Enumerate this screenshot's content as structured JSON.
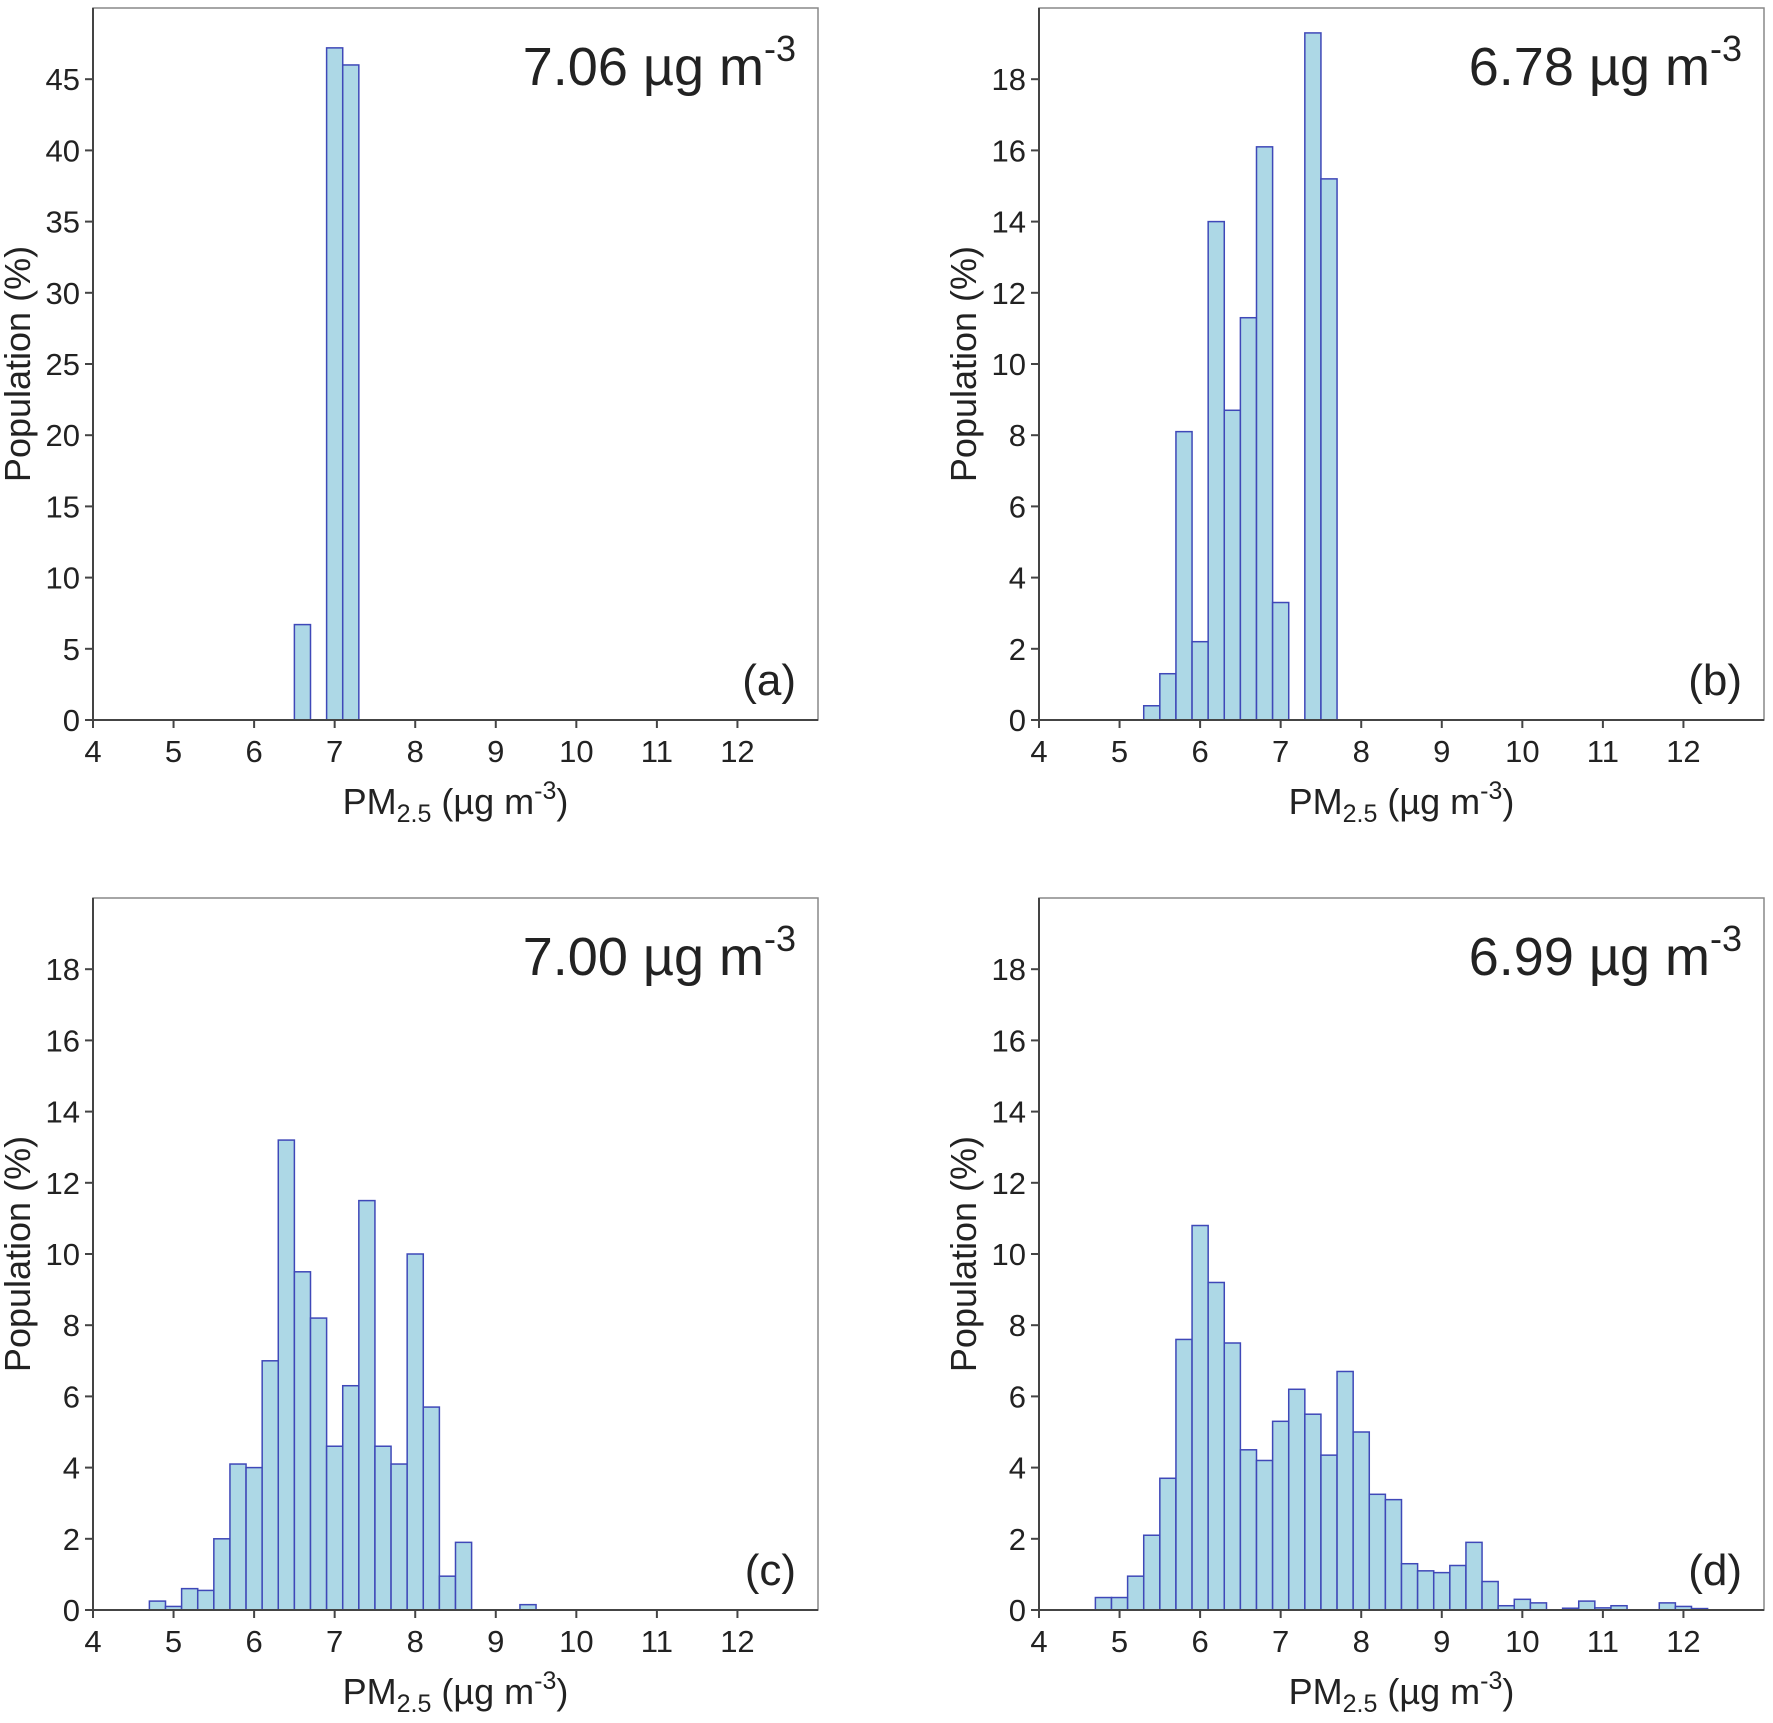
{
  "style": {
    "bar_fill": "#add8e6",
    "bar_stroke": "#3f48b8",
    "axis_color": "#444444",
    "frame_color": "#888888"
  },
  "chart_data": [
    {
      "type": "bar",
      "panel": "(a)",
      "annotation": "7.06 µg m",
      "annotation_sup": "-3",
      "ylabel": "Population (%)",
      "xlabel_main": "PM",
      "xlabel_sub": "2.5",
      "xlabel_rest": " (µg m",
      "xlabel_sup": "-3",
      "xlabel_close": ")",
      "xlim": [
        4,
        13
      ],
      "ylim": [
        0,
        50
      ],
      "xticks": [
        4,
        5,
        6,
        7,
        8,
        9,
        10,
        11,
        12
      ],
      "yticks": [
        0,
        5,
        10,
        15,
        20,
        25,
        30,
        35,
        40,
        45
      ],
      "bin_width": 0.2,
      "bins": [
        {
          "x0": 6.5,
          "x1": 6.7,
          "y": 6.7
        },
        {
          "x0": 6.9,
          "x1": 7.1,
          "y": 47.2
        },
        {
          "x0": 7.1,
          "x1": 7.3,
          "y": 46.0
        }
      ]
    },
    {
      "type": "bar",
      "panel": "(b)",
      "annotation": "6.78 µg m",
      "annotation_sup": "-3",
      "ylabel": "Population (%)",
      "xlabel_main": "PM",
      "xlabel_sub": "2.5",
      "xlabel_rest": " (µg m",
      "xlabel_sup": "-3",
      "xlabel_close": ")",
      "xlim": [
        4,
        13
      ],
      "ylim": [
        0,
        20
      ],
      "xticks": [
        4,
        5,
        6,
        7,
        8,
        9,
        10,
        11,
        12
      ],
      "yticks": [
        0,
        2,
        4,
        6,
        8,
        10,
        12,
        14,
        16,
        18
      ],
      "bin_width": 0.2,
      "bins": [
        {
          "x0": 5.3,
          "x1": 5.5,
          "y": 0.4
        },
        {
          "x0": 5.5,
          "x1": 5.7,
          "y": 1.3
        },
        {
          "x0": 5.7,
          "x1": 5.9,
          "y": 8.1
        },
        {
          "x0": 5.9,
          "x1": 6.1,
          "y": 2.2
        },
        {
          "x0": 6.1,
          "x1": 6.3,
          "y": 14.0
        },
        {
          "x0": 6.3,
          "x1": 6.5,
          "y": 8.7
        },
        {
          "x0": 6.5,
          "x1": 6.7,
          "y": 11.3
        },
        {
          "x0": 6.7,
          "x1": 6.9,
          "y": 16.1
        },
        {
          "x0": 6.9,
          "x1": 7.1,
          "y": 3.3
        },
        {
          "x0": 7.3,
          "x1": 7.5,
          "y": 19.3
        },
        {
          "x0": 7.5,
          "x1": 7.7,
          "y": 15.2
        }
      ]
    },
    {
      "type": "bar",
      "panel": "(c)",
      "annotation": "7.00 µg m",
      "annotation_sup": "-3",
      "ylabel": "Population (%)",
      "xlabel_main": "PM",
      "xlabel_sub": "2.5",
      "xlabel_rest": " (µg m",
      "xlabel_sup": "-3",
      "xlabel_close": ")",
      "xlim": [
        4,
        13
      ],
      "ylim": [
        0,
        20
      ],
      "xticks": [
        4,
        5,
        6,
        7,
        8,
        9,
        10,
        11,
        12
      ],
      "yticks": [
        0,
        2,
        4,
        6,
        8,
        10,
        12,
        14,
        16,
        18
      ],
      "bin_width": 0.2,
      "bins": [
        {
          "x0": 4.7,
          "x1": 4.9,
          "y": 0.25
        },
        {
          "x0": 4.9,
          "x1": 5.1,
          "y": 0.1
        },
        {
          "x0": 5.1,
          "x1": 5.3,
          "y": 0.6
        },
        {
          "x0": 5.3,
          "x1": 5.5,
          "y": 0.55
        },
        {
          "x0": 5.5,
          "x1": 5.7,
          "y": 2.0
        },
        {
          "x0": 5.7,
          "x1": 5.9,
          "y": 4.1
        },
        {
          "x0": 5.9,
          "x1": 6.1,
          "y": 4.0
        },
        {
          "x0": 6.1,
          "x1": 6.3,
          "y": 7.0
        },
        {
          "x0": 6.3,
          "x1": 6.5,
          "y": 13.2
        },
        {
          "x0": 6.5,
          "x1": 6.7,
          "y": 9.5
        },
        {
          "x0": 6.7,
          "x1": 6.9,
          "y": 8.2
        },
        {
          "x0": 6.9,
          "x1": 7.1,
          "y": 4.6
        },
        {
          "x0": 7.1,
          "x1": 7.3,
          "y": 6.3
        },
        {
          "x0": 7.3,
          "x1": 7.5,
          "y": 11.5
        },
        {
          "x0": 7.5,
          "x1": 7.7,
          "y": 4.6
        },
        {
          "x0": 7.7,
          "x1": 7.9,
          "y": 4.1
        },
        {
          "x0": 7.9,
          "x1": 8.1,
          "y": 10.0
        },
        {
          "x0": 8.1,
          "x1": 8.3,
          "y": 5.7
        },
        {
          "x0": 8.3,
          "x1": 8.5,
          "y": 0.95
        },
        {
          "x0": 8.5,
          "x1": 8.7,
          "y": 1.9
        },
        {
          "x0": 9.3,
          "x1": 9.5,
          "y": 0.15
        }
      ]
    },
    {
      "type": "bar",
      "panel": "(d)",
      "annotation": "6.99 µg m",
      "annotation_sup": "-3",
      "ylabel": "Population (%)",
      "xlabel_main": "PM",
      "xlabel_sub": "2.5",
      "xlabel_rest": " (µg m",
      "xlabel_sup": "-3",
      "xlabel_close": ")",
      "xlim": [
        4,
        13
      ],
      "ylim": [
        0,
        20
      ],
      "xticks": [
        4,
        5,
        6,
        7,
        8,
        9,
        10,
        11,
        12
      ],
      "yticks": [
        0,
        2,
        4,
        6,
        8,
        10,
        12,
        14,
        16,
        18
      ],
      "bin_width": 0.2,
      "bins": [
        {
          "x0": 4.7,
          "x1": 4.9,
          "y": 0.35
        },
        {
          "x0": 4.9,
          "x1": 5.1,
          "y": 0.35
        },
        {
          "x0": 5.1,
          "x1": 5.3,
          "y": 0.95
        },
        {
          "x0": 5.3,
          "x1": 5.5,
          "y": 2.1
        },
        {
          "x0": 5.5,
          "x1": 5.7,
          "y": 3.7
        },
        {
          "x0": 5.7,
          "x1": 5.9,
          "y": 7.6
        },
        {
          "x0": 5.9,
          "x1": 6.1,
          "y": 10.8
        },
        {
          "x0": 6.1,
          "x1": 6.3,
          "y": 9.2
        },
        {
          "x0": 6.3,
          "x1": 6.5,
          "y": 7.5
        },
        {
          "x0": 6.5,
          "x1": 6.7,
          "y": 4.5
        },
        {
          "x0": 6.7,
          "x1": 6.9,
          "y": 4.2
        },
        {
          "x0": 6.9,
          "x1": 7.1,
          "y": 5.3
        },
        {
          "x0": 7.1,
          "x1": 7.3,
          "y": 6.2
        },
        {
          "x0": 7.3,
          "x1": 7.5,
          "y": 5.5
        },
        {
          "x0": 7.5,
          "x1": 7.7,
          "y": 4.35
        },
        {
          "x0": 7.7,
          "x1": 7.9,
          "y": 6.7
        },
        {
          "x0": 7.9,
          "x1": 8.1,
          "y": 5.0
        },
        {
          "x0": 8.1,
          "x1": 8.3,
          "y": 3.25
        },
        {
          "x0": 8.3,
          "x1": 8.5,
          "y": 3.1
        },
        {
          "x0": 8.5,
          "x1": 8.7,
          "y": 1.3
        },
        {
          "x0": 8.7,
          "x1": 8.9,
          "y": 1.1
        },
        {
          "x0": 8.9,
          "x1": 9.1,
          "y": 1.05
        },
        {
          "x0": 9.1,
          "x1": 9.3,
          "y": 1.25
        },
        {
          "x0": 9.3,
          "x1": 9.5,
          "y": 1.9
        },
        {
          "x0": 9.5,
          "x1": 9.7,
          "y": 0.8
        },
        {
          "x0": 9.7,
          "x1": 9.9,
          "y": 0.12
        },
        {
          "x0": 9.9,
          "x1": 10.1,
          "y": 0.3
        },
        {
          "x0": 10.1,
          "x1": 10.3,
          "y": 0.2
        },
        {
          "x0": 10.5,
          "x1": 10.7,
          "y": 0.05
        },
        {
          "x0": 10.7,
          "x1": 10.9,
          "y": 0.25
        },
        {
          "x0": 10.9,
          "x1": 11.1,
          "y": 0.06
        },
        {
          "x0": 11.1,
          "x1": 11.3,
          "y": 0.12
        },
        {
          "x0": 11.7,
          "x1": 11.9,
          "y": 0.2
        },
        {
          "x0": 11.9,
          "x1": 12.1,
          "y": 0.1
        },
        {
          "x0": 12.1,
          "x1": 12.3,
          "y": 0.04
        }
      ]
    }
  ]
}
